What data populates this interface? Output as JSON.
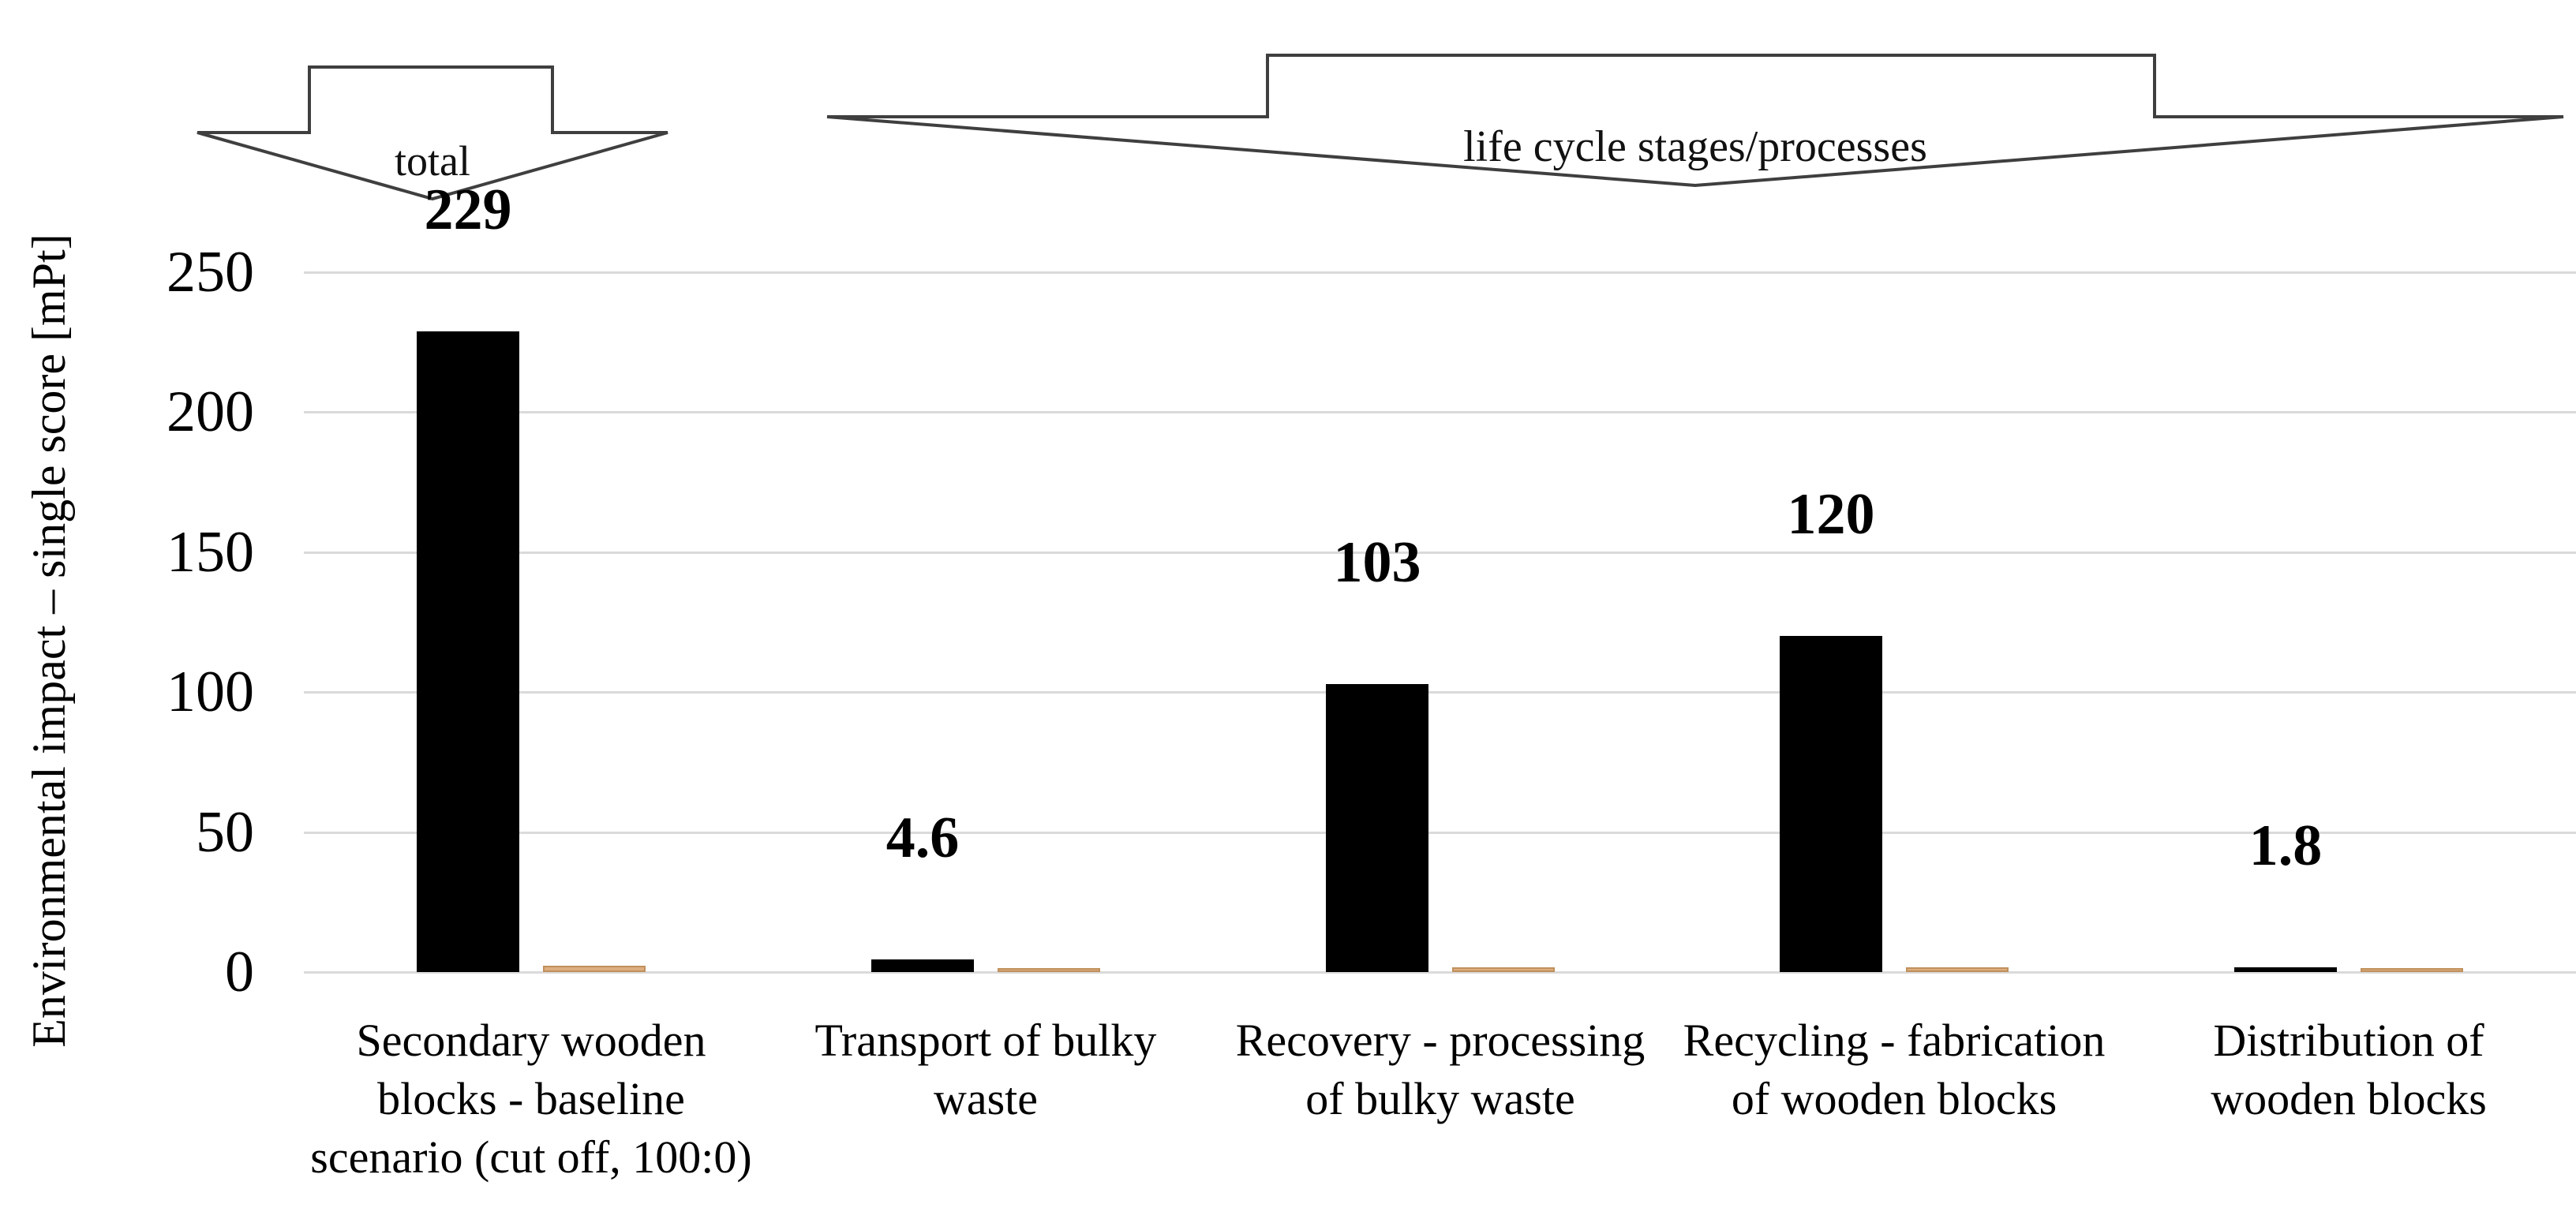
{
  "chart_data": {
    "type": "bar",
    "title": "",
    "ylabel": "Environmental impact – single score [mPt]",
    "xlabel": "",
    "ylim": [
      0,
      250
    ],
    "yticks": [
      0,
      50,
      100,
      150,
      200,
      250
    ],
    "grid": true,
    "legend": "none",
    "categories": [
      "Secondary wooden blocks - baseline scenario (cut off, 100:0)",
      "Transport of bulky waste",
      "Recovery - processing of bulky waste",
      "Recycling - fabrication of wooden blocks",
      "Distribution of wooden blocks"
    ],
    "categories_wrapped": [
      [
        "Secondary wooden",
        "blocks - baseline",
        "scenario (cut off, 100:0)"
      ],
      [
        "Transport of bulky",
        "waste"
      ],
      [
        "Recovery - processing",
        "of bulky waste"
      ],
      [
        "Recycling - fabrication",
        "of wooden blocks"
      ],
      [
        "Distribution of",
        "wooden blocks"
      ]
    ],
    "series": [
      {
        "name": "environmental impact single score (black bars)",
        "color": "#000000",
        "values": [
          229,
          4.6,
          103,
          120,
          1.8
        ],
        "data_labels": [
          "229",
          "4.6",
          "103",
          "120",
          "1.8"
        ]
      },
      {
        "name": "unlabeled secondary series (thin tan bars)",
        "color": "#ddae80",
        "border_color": "#c0905c",
        "values": [
          2.3,
          0.8,
          1.7,
          1.7,
          0.8
        ],
        "values_note": "no data labels shown in figure; heights estimated from pixels"
      }
    ],
    "annotations": [
      {
        "text": "total",
        "shape": "block-down-arrow",
        "covers": "category 1"
      },
      {
        "text": "life cycle stages/processes",
        "shape": "block-down-arrow",
        "covers": "categories 2-5"
      }
    ]
  }
}
